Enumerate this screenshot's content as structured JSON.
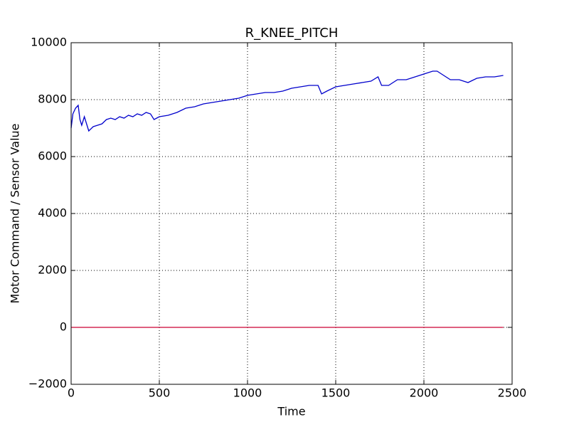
{
  "chart_data": {
    "type": "line",
    "title": "R_KNEE_PITCH",
    "x_label": "Time",
    "y_label": "Motor Command / Sensor Value",
    "xlim": [
      0,
      2500
    ],
    "xticks": [
      0,
      500,
      1000,
      1500,
      2000,
      2500
    ],
    "ylim": [
      -2000,
      10000
    ],
    "yticks": [
      {
        "value": -2000,
        "label": "−2000"
      },
      0,
      2000,
      4000,
      6000,
      8000,
      10000
    ],
    "grid": true,
    "series": [
      {
        "color": "#0000cc",
        "x": [
          0,
          10,
          25,
          40,
          50,
          60,
          75,
          90,
          100,
          125,
          150,
          175,
          200,
          225,
          250,
          275,
          300,
          325,
          350,
          375,
          400,
          425,
          450,
          470,
          500,
          550,
          600,
          650,
          700,
          750,
          800,
          850,
          900,
          950,
          1000,
          1050,
          1100,
          1150,
          1200,
          1250,
          1300,
          1350,
          1400,
          1420,
          1450,
          1500,
          1550,
          1600,
          1650,
          1700,
          1740,
          1760,
          1800,
          1850,
          1900,
          1950,
          2000,
          2050,
          2075,
          2100,
          2150,
          2200,
          2250,
          2300,
          2350,
          2400,
          2450
        ],
        "values": [
          7000,
          7500,
          7700,
          7800,
          7300,
          7100,
          7400,
          7100,
          6900,
          7050,
          7100,
          7150,
          7300,
          7350,
          7300,
          7400,
          7350,
          7450,
          7400,
          7500,
          7450,
          7550,
          7500,
          7300,
          7400,
          7450,
          7550,
          7700,
          7750,
          7850,
          7900,
          7950,
          8000,
          8050,
          8150,
          8200,
          8250,
          8250,
          8300,
          8400,
          8450,
          8500,
          8500,
          8200,
          8300,
          8450,
          8500,
          8550,
          8600,
          8650,
          8800,
          8500,
          8500,
          8700,
          8700,
          8800,
          8900,
          9000,
          9000,
          8900,
          8700,
          8700,
          8600,
          8750,
          8800,
          8800,
          8850
        ]
      },
      {
        "color": "#cc0033",
        "x": [
          0,
          2450
        ],
        "values": [
          0,
          0
        ]
      }
    ]
  }
}
